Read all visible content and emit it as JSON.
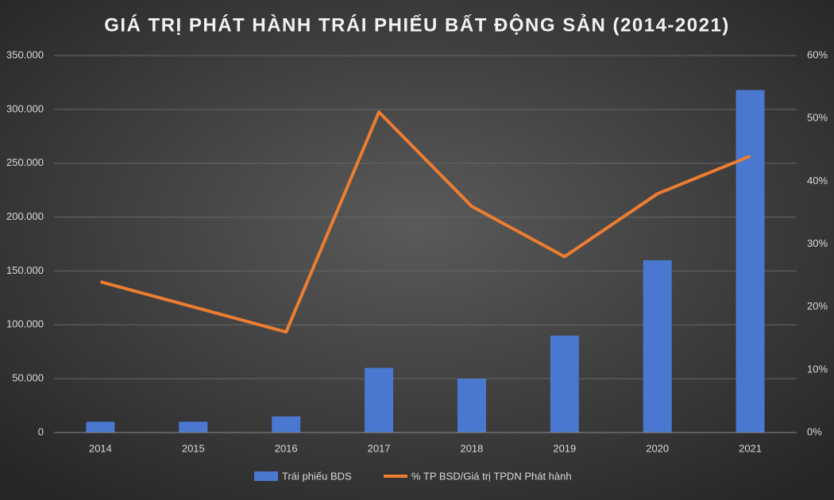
{
  "chart_data": {
    "type": "combo",
    "title": "GIÁ TRỊ PHÁT HÀNH TRÁI PHIẾU BẤT ĐỘNG SẢN (2014-2021)",
    "categories": [
      "2014",
      "2015",
      "2016",
      "2017",
      "2018",
      "2019",
      "2020",
      "2021"
    ],
    "series": [
      {
        "name": "Trái phiếu BDS",
        "type": "bar",
        "color": "#4a78d0",
        "values": [
          10000,
          10000,
          15000,
          60000,
          50000,
          90000,
          160000,
          318000
        ]
      },
      {
        "name": "% TP BSD/Giá trị TPDN Phát hành",
        "type": "line",
        "axis": "y2",
        "color": "#ed7d31",
        "values": [
          24,
          20,
          16,
          51,
          36,
          28,
          38,
          44
        ]
      }
    ],
    "ylim": [
      0,
      350000
    ],
    "yticks": [
      0,
      {
        "value": 50000,
        "label": "50.000"
      },
      {
        "value": 100000,
        "label": "100.000"
      },
      {
        "value": 150000,
        "label": "150.000"
      },
      {
        "value": 200000,
        "label": "200.000"
      },
      {
        "value": 250000,
        "label": "250.000"
      },
      {
        "value": 300000,
        "label": "300.000"
      },
      {
        "value": 350000,
        "label": "350.000"
      }
    ],
    "y2lim": [
      0,
      60
    ],
    "y2ticks": [
      {
        "value": 0,
        "label": "0%"
      },
      {
        "value": 10,
        "label": "10%"
      },
      {
        "value": 20,
        "label": "20%"
      },
      {
        "value": 30,
        "label": "30%"
      },
      {
        "value": 40,
        "label": "40%"
      },
      {
        "value": 50,
        "label": "50%"
      },
      {
        "value": 60,
        "label": "60%"
      }
    ],
    "grid": true,
    "legend": "bottom"
  }
}
